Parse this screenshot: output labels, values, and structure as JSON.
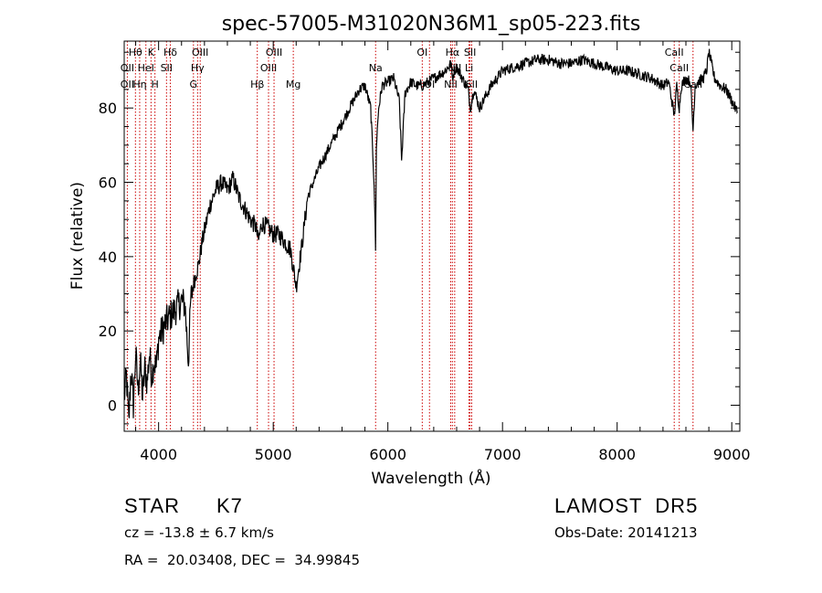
{
  "chart_data": {
    "type": "line",
    "title": "spec-57005-M31020N36M1_sp05-223.fits",
    "xlabel": "Wavelength (Å)",
    "ylabel": "Flux (relative)",
    "xlim": [
      3700,
      9070
    ],
    "ylim": [
      -7,
      98
    ],
    "xticks": [
      4000,
      5000,
      6000,
      7000,
      8000,
      9000
    ],
    "yticks": [
      0,
      20,
      40,
      60,
      80
    ],
    "grid": false,
    "series": [
      {
        "x": [
          3700,
          3720,
          3740,
          3760,
          3780,
          3800,
          3820,
          3840,
          3860,
          3880,
          3900,
          3920,
          3940,
          3960,
          3980,
          4000,
          4030,
          4060,
          4100,
          4150,
          4200,
          4230,
          4260,
          4280,
          4300,
          4330,
          4350,
          4380,
          4400,
          4450,
          4500,
          4550,
          4600,
          4650,
          4700,
          4750,
          4800,
          4850,
          4870,
          4900,
          4950,
          5000,
          5050,
          5100,
          5150,
          5180,
          5200,
          5250,
          5300,
          5400,
          5500,
          5600,
          5700,
          5750,
          5800,
          5850,
          5880,
          5893,
          5900,
          5920,
          5950,
          6000,
          6050,
          6100,
          6120,
          6150,
          6200,
          6250,
          6300,
          6350,
          6400,
          6450,
          6500,
          6550,
          6563,
          6580,
          6600,
          6650,
          6700,
          6720,
          6750,
          6800,
          6850,
          6900,
          7000,
          7100,
          7200,
          7300,
          7400,
          7500,
          7600,
          7700,
          7800,
          7900,
          8000,
          8100,
          8200,
          8300,
          8400,
          8450,
          8498,
          8520,
          8542,
          8560,
          8600,
          8640,
          8662,
          8680,
          8700,
          8750,
          8780,
          8800,
          8850,
          8900,
          8950,
          9000,
          9030,
          9050
        ],
        "y": [
          2,
          8,
          -5,
          10,
          0,
          14,
          4,
          12,
          2,
          10,
          6,
          14,
          8,
          12,
          10,
          18,
          20,
          22,
          24,
          26,
          28,
          27,
          12,
          28,
          32,
          36,
          38,
          44,
          47,
          54,
          58,
          60,
          58,
          61,
          56,
          53,
          50,
          48,
          44,
          49,
          48,
          46,
          46,
          44,
          42,
          36,
          32,
          43,
          56,
          64,
          70,
          76,
          82,
          85,
          86,
          80,
          60,
          42,
          70,
          80,
          86,
          87,
          88,
          82,
          66,
          84,
          87,
          86,
          86,
          87,
          88,
          89,
          90,
          92,
          88,
          90,
          91,
          88,
          85,
          80,
          85,
          80,
          83,
          86,
          90,
          91,
          92,
          93,
          93,
          92,
          92,
          93,
          92,
          91,
          90,
          90,
          89,
          88,
          86,
          87,
          78,
          86,
          80,
          86,
          88,
          87,
          74,
          86,
          87,
          88,
          90,
          95,
          88,
          86,
          85,
          82,
          80,
          79
        ]
      }
    ],
    "line_labels": [
      {
        "text": "Hθ",
        "wave": 3798,
        "row": 1
      },
      {
        "text": "K",
        "wave": 3934,
        "row": 1
      },
      {
        "text": "Hδ",
        "wave": 4102,
        "row": 1
      },
      {
        "text": "OIII",
        "wave": 4363,
        "row": 1
      },
      {
        "text": "OIII",
        "wave": 5007,
        "row": 1
      },
      {
        "text": "OI",
        "wave": 6300,
        "row": 1
      },
      {
        "text": "Hα",
        "wave": 6563,
        "row": 1
      },
      {
        "text": "SII",
        "wave": 6717,
        "row": 1
      },
      {
        "text": "CaII",
        "wave": 8498,
        "row": 1
      },
      {
        "text": "OII",
        "wave": 3727,
        "row": 2
      },
      {
        "text": "HeI",
        "wave": 3889,
        "row": 2
      },
      {
        "text": "SII",
        "wave": 4069,
        "row": 2
      },
      {
        "text": "Hγ",
        "wave": 4340,
        "row": 2
      },
      {
        "text": "OIII",
        "wave": 4959,
        "row": 2
      },
      {
        "text": "Na",
        "wave": 5893,
        "row": 2
      },
      {
        "text": "NII",
        "wave": 6583,
        "row": 2
      },
      {
        "text": "Li",
        "wave": 6708,
        "row": 2
      },
      {
        "text": "CaII",
        "wave": 8542,
        "row": 2
      },
      {
        "text": "OII",
        "wave": 3727,
        "row": 3
      },
      {
        "text": "Hη",
        "wave": 3835,
        "row": 3
      },
      {
        "text": "H",
        "wave": 3968,
        "row": 3
      },
      {
        "text": "G",
        "wave": 4304,
        "row": 3
      },
      {
        "text": "Hβ",
        "wave": 4861,
        "row": 3
      },
      {
        "text": "Mg",
        "wave": 5175,
        "row": 3
      },
      {
        "text": "OI",
        "wave": 6363,
        "row": 3
      },
      {
        "text": "NII",
        "wave": 6548,
        "row": 3
      },
      {
        "text": "SII",
        "wave": 6731,
        "row": 3
      },
      {
        "text": "CaII",
        "wave": 8662,
        "row": 3
      }
    ],
    "line_markers": [
      3727,
      3798,
      3835,
      3889,
      3934,
      3968,
      4069,
      4102,
      4304,
      4340,
      4363,
      4861,
      4959,
      5007,
      5175,
      5893,
      6300,
      6363,
      6548,
      6563,
      6583,
      6708,
      6717,
      6731,
      8498,
      8542,
      8662
    ],
    "marker_color": "#cc0000"
  },
  "info": {
    "class_label": "STAR",
    "subclass": "K7",
    "survey": "LAMOST  DR5",
    "cz": "cz = -13.8 ± 6.7 km/s",
    "obs_date": "Obs-Date: 20141213",
    "coords": "RA =  20.03408, DEC =  34.99845"
  }
}
